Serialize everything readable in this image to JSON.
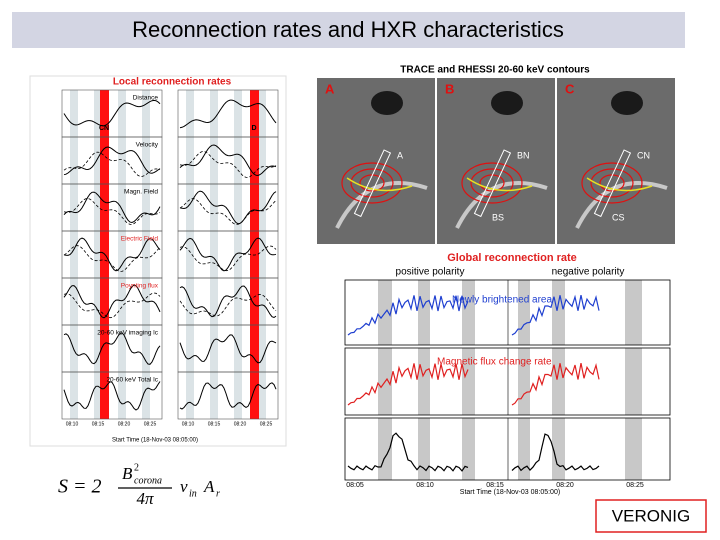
{
  "header": {
    "title": "Reconnection rates and HXR characteristics"
  },
  "left_figure": {
    "title": "Local reconnection rates",
    "panels": [
      "Distance",
      "Velocity",
      "Magn. Field",
      "Electric Field",
      "Poynting flux",
      "20-60 keV imaging lc",
      "20-60 keV Total lc"
    ],
    "markers": [
      "CN",
      "D"
    ],
    "x_ticks": [
      "08:10",
      "08:15",
      "08:20",
      "08:25"
    ],
    "x_axis": "Start Time (18-Nov-03 08:05:00)"
  },
  "right_top": {
    "title": "TRACE and RHESSI 20-60 keV contours",
    "panels": [
      {
        "label": "A",
        "tags": [
          "A"
        ]
      },
      {
        "label": "B",
        "tags": [
          "BN",
          "BS"
        ]
      },
      {
        "label": "C",
        "tags": [
          "CN",
          "CS"
        ]
      }
    ]
  },
  "right_bottom": {
    "title": "Global reconnection rate",
    "subtitles": [
      "positive polarity",
      "negative polarity"
    ],
    "annotations": [
      "Newly brightened area",
      "Magnetic flux change rate"
    ],
    "x_ticks": [
      "08:05",
      "08:10",
      "08:15",
      "08:20",
      "08:25"
    ],
    "x_axis": "Start Time (18-Nov-03 08:05:00)"
  },
  "formula": {
    "lhs": "S = 2",
    "numerator": "B",
    "sup": "2",
    "sub": "corona",
    "denominator": "4π",
    "rest": "v",
    "rest_sub": "in",
    "area": "A",
    "area_sub": "r"
  },
  "footer": {
    "author": "VERONIG"
  }
}
